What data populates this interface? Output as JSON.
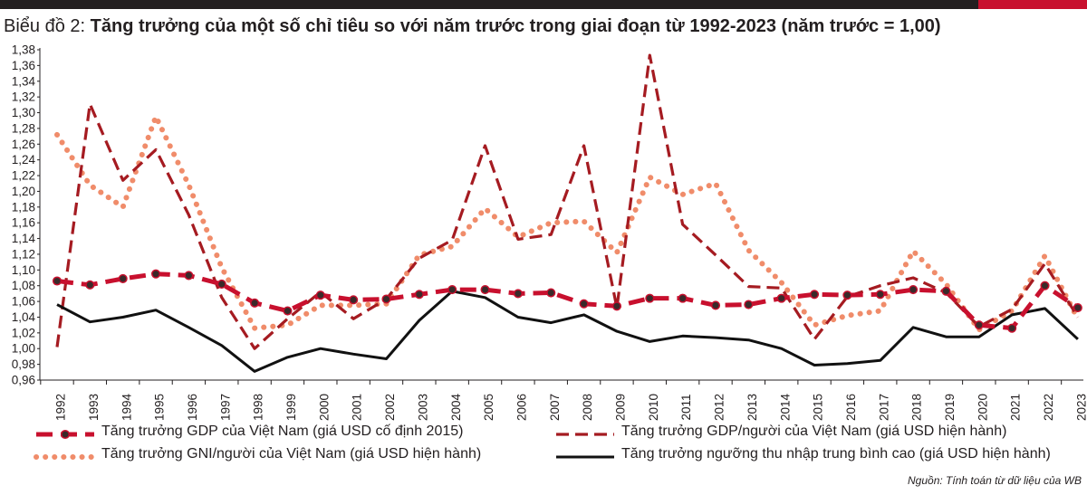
{
  "chart_data": {
    "type": "line",
    "title_prefix": "Biểu đồ 2:",
    "title": "Tăng trưởng của một số chỉ tiêu so với năm trước trong giai đoạn từ 1992-2023 (năm trước = 1,00)",
    "categories": [
      "1992",
      "1993",
      "1994",
      "1995",
      "1996",
      "1997",
      "1998",
      "1999",
      "2000",
      "2001",
      "2002",
      "2003",
      "2004",
      "2005",
      "2006",
      "2007",
      "2008",
      "2009",
      "2010",
      "2011",
      "2012",
      "2013",
      "2014",
      "2015",
      "2016",
      "2017",
      "2018",
      "2019",
      "2020",
      "2021",
      "2022",
      "2023"
    ],
    "ylim": [
      0.96,
      1.38
    ],
    "y_step": 0.02,
    "y_ticks": [
      "0,96",
      "0,98",
      "1,00",
      "1,02",
      "1,04",
      "1,06",
      "1,08",
      "1,10",
      "1,12",
      "1,14",
      "1,16",
      "1,18",
      "1,20",
      "1,22",
      "1,24",
      "1,26",
      "1,28",
      "1,30",
      "1,32",
      "1,34",
      "1,36",
      "1,38"
    ],
    "series": [
      {
        "name": "Tăng trưởng GDP của Việt Nam (giá USD cố định 2015)",
        "style": "gdp-const",
        "color": "#c8102e",
        "values": [
          1.086,
          1.081,
          1.089,
          1.095,
          1.093,
          1.082,
          1.058,
          1.048,
          1.068,
          1.062,
          1.063,
          1.069,
          1.075,
          1.075,
          1.07,
          1.071,
          1.057,
          1.054,
          1.064,
          1.064,
          1.055,
          1.056,
          1.064,
          1.069,
          1.068,
          1.069,
          1.075,
          1.073,
          1.03,
          1.026,
          1.08,
          1.052
        ]
      },
      {
        "name": "Tăng trưởng GDP/người của Việt Nam (giá USD hiện hành)",
        "style": "gdp-pc",
        "color": "#a51b21",
        "values": [
          1.002,
          1.311,
          1.214,
          1.253,
          1.17,
          1.065,
          1.0,
          1.038,
          1.072,
          1.038,
          1.063,
          1.115,
          1.138,
          1.258,
          1.139,
          1.145,
          1.258,
          1.052,
          1.373,
          1.158,
          1.119,
          1.079,
          1.077,
          1.012,
          1.066,
          1.08,
          1.09,
          1.071,
          1.028,
          1.05,
          1.108,
          1.04
        ]
      },
      {
        "name": "Tăng trưởng GNI/người của Việt Nam (giá USD hiện hành)",
        "style": "gni-pc",
        "color": "#f08c6a",
        "values": [
          1.272,
          1.208,
          1.18,
          1.295,
          1.208,
          1.103,
          1.026,
          1.03,
          1.055,
          1.055,
          1.057,
          1.119,
          1.13,
          1.178,
          1.142,
          1.16,
          1.162,
          1.122,
          1.218,
          1.196,
          1.21,
          1.125,
          1.084,
          1.03,
          1.042,
          1.048,
          1.124,
          1.082,
          1.024,
          1.048,
          1.118,
          1.038
        ]
      },
      {
        "name": "Tăng trưởng ngưỡng thu nhập trung bình cao (giá USD hiện hành)",
        "style": "umi",
        "color": "#111111",
        "values": [
          1.056,
          1.034,
          1.04,
          1.049,
          1.027,
          1.004,
          0.971,
          0.989,
          1.0,
          0.993,
          0.987,
          1.036,
          1.073,
          1.065,
          1.04,
          1.033,
          1.043,
          1.022,
          1.009,
          1.016,
          1.014,
          1.011,
          1.0,
          0.979,
          0.981,
          0.985,
          1.027,
          1.015,
          1.015,
          1.043,
          1.051,
          1.012
        ]
      }
    ],
    "xlabel": "",
    "ylabel": "",
    "grid": false,
    "legend_position": "bottom"
  },
  "source_note": "Nguồn: Tính toán từ dữ liệu của WB"
}
